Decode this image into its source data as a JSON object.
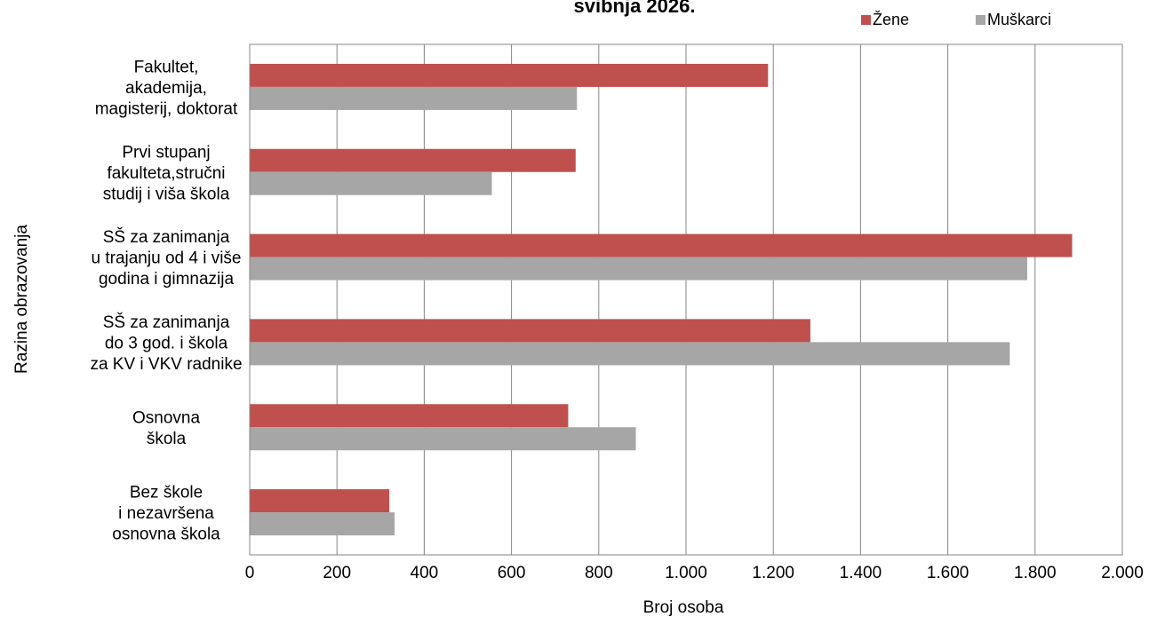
{
  "chart_data": {
    "type": "bar",
    "orientation": "horizontal",
    "title": "svibnja 2026.",
    "xlabel": "Broj osoba",
    "ylabel": "Razina obrazovanja",
    "xlim": [
      0,
      2000
    ],
    "x_ticks": [
      "0",
      "200",
      "400",
      "600",
      "800",
      "1.000",
      "1.200",
      "1.400",
      "1.600",
      "1.800",
      "2.000"
    ],
    "x_tick_values": [
      0,
      200,
      400,
      600,
      800,
      1000,
      1200,
      1400,
      1600,
      1800,
      2000
    ],
    "grid": "vertical",
    "legend_position": "top-right",
    "categories": [
      [
        "Fakultet,",
        "akademija,",
        "magisterij, doktorat"
      ],
      [
        "Prvi stupanj",
        "fakulteta,stručni",
        "studij i viša škola"
      ],
      [
        "SŠ za zanimanja",
        "u trajanju od 4 i više",
        "godina i gimnazija"
      ],
      [
        "SŠ za zanimanja",
        "do 3 god. i škola",
        "za KV i VKV radnike"
      ],
      [
        "Osnovna",
        "škola"
      ],
      [
        "Bez škole",
        "i nezavršena",
        "osnovna škola"
      ]
    ],
    "series": [
      {
        "name": "Žene",
        "color": "#c0504d",
        "values": [
          1188,
          747,
          1885,
          1285,
          730,
          320
        ]
      },
      {
        "name": "Muškarci",
        "color": "#a6a6a6",
        "values": [
          750,
          555,
          1782,
          1742,
          885,
          332
        ]
      }
    ]
  }
}
